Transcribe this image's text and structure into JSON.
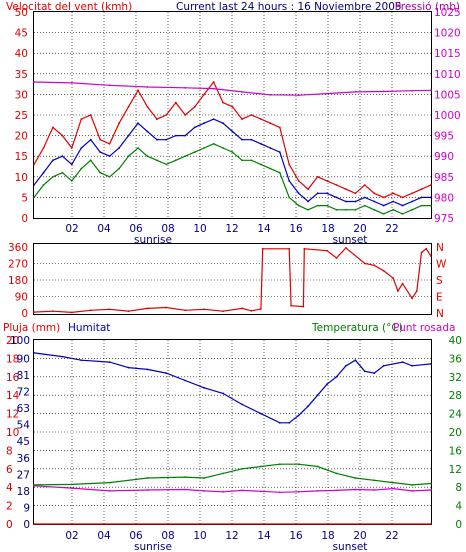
{
  "colors": {
    "red": "#e00000",
    "blue": "#0000c0",
    "green": "#008000",
    "magenta": "#d000d0",
    "purple": "#a000a0",
    "navy": "#000080",
    "black": "#000000"
  },
  "chart_data": [
    {
      "type": "line",
      "title": "Current last 24 hours : 16 Noviembre 2005",
      "left_axis_label": "Velocitat del vent (kmh)",
      "right_axis_label": "Pressió (mb)",
      "left_ticks": [
        "0",
        "5",
        "10",
        "15",
        "20",
        "25",
        "30",
        "35",
        "40",
        "45",
        "50"
      ],
      "right_ticks": [
        "975",
        "980",
        "985",
        "990",
        "995",
        "1000",
        "1005",
        "1010",
        "1015",
        "1020",
        "1025"
      ],
      "x_ticks": [
        "02",
        "04",
        "06",
        "08",
        "10",
        "12",
        "14",
        "16",
        "18",
        "20",
        "22"
      ],
      "x_markers": [
        "sunrise",
        "sunset"
      ],
      "ylim_left": [
        0,
        50
      ],
      "ylim_right": [
        975,
        1025
      ],
      "grid": true,
      "series": [
        {
          "color": "#e00000",
          "kind": "gust",
          "points": [
            [
              0,
              13
            ],
            [
              1,
              17
            ],
            [
              2,
              22
            ],
            [
              3,
              20
            ],
            [
              4,
              17
            ],
            [
              5,
              24
            ],
            [
              6,
              25
            ],
            [
              7,
              19
            ],
            [
              8,
              18
            ],
            [
              9,
              23
            ],
            [
              10,
              27
            ],
            [
              11,
              31
            ],
            [
              12,
              27
            ],
            [
              13,
              24
            ],
            [
              14,
              25
            ],
            [
              15,
              28
            ],
            [
              16,
              25
            ],
            [
              17,
              27
            ],
            [
              18,
              30
            ],
            [
              19,
              33
            ],
            [
              20,
              28
            ],
            [
              21,
              27
            ],
            [
              22,
              24
            ],
            [
              23,
              25
            ],
            [
              24,
              24
            ],
            [
              25,
              23
            ],
            [
              26,
              22
            ],
            [
              27,
              13
            ],
            [
              28,
              9
            ],
            [
              29,
              7
            ],
            [
              30,
              10
            ],
            [
              31,
              9
            ],
            [
              32,
              8
            ],
            [
              33,
              7
            ],
            [
              34,
              6
            ],
            [
              35,
              8
            ],
            [
              36,
              6
            ],
            [
              37,
              5
            ],
            [
              38,
              6
            ],
            [
              39,
              5
            ],
            [
              40,
              6
            ],
            [
              41,
              7
            ],
            [
              42,
              8
            ]
          ]
        },
        {
          "color": "#0000c0",
          "kind": "average",
          "points": [
            [
              0,
              8
            ],
            [
              1,
              11
            ],
            [
              2,
              14
            ],
            [
              3,
              15
            ],
            [
              4,
              13
            ],
            [
              5,
              17
            ],
            [
              6,
              19
            ],
            [
              7,
              16
            ],
            [
              8,
              15
            ],
            [
              9,
              17
            ],
            [
              10,
              20
            ],
            [
              11,
              23
            ],
            [
              12,
              21
            ],
            [
              13,
              19
            ],
            [
              14,
              19
            ],
            [
              15,
              20
            ],
            [
              16,
              20
            ],
            [
              17,
              22
            ],
            [
              18,
              23
            ],
            [
              19,
              24
            ],
            [
              20,
              23
            ],
            [
              21,
              21
            ],
            [
              22,
              19
            ],
            [
              23,
              19
            ],
            [
              24,
              18
            ],
            [
              25,
              17
            ],
            [
              26,
              16
            ],
            [
              27,
              9
            ],
            [
              28,
              6
            ],
            [
              29,
              4
            ],
            [
              30,
              6
            ],
            [
              31,
              6
            ],
            [
              32,
              5
            ],
            [
              33,
              4
            ],
            [
              34,
              4
            ],
            [
              35,
              5
            ],
            [
              36,
              4
            ],
            [
              37,
              3
            ],
            [
              38,
              4
            ],
            [
              39,
              3
            ],
            [
              40,
              4
            ],
            [
              41,
              5
            ],
            [
              42,
              5
            ]
          ]
        },
        {
          "color": "#008000",
          "kind": "min",
          "points": [
            [
              0,
              5
            ],
            [
              1,
              8
            ],
            [
              2,
              10
            ],
            [
              3,
              11
            ],
            [
              4,
              9
            ],
            [
              5,
              12
            ],
            [
              6,
              14
            ],
            [
              7,
              11
            ],
            [
              8,
              10
            ],
            [
              9,
              12
            ],
            [
              10,
              15
            ],
            [
              11,
              17
            ],
            [
              12,
              15
            ],
            [
              13,
              14
            ],
            [
              14,
              13
            ],
            [
              15,
              14
            ],
            [
              16,
              15
            ],
            [
              17,
              16
            ],
            [
              18,
              17
            ],
            [
              19,
              18
            ],
            [
              20,
              17
            ],
            [
              21,
              16
            ],
            [
              22,
              14
            ],
            [
              23,
              14
            ],
            [
              24,
              13
            ],
            [
              25,
              12
            ],
            [
              26,
              11
            ],
            [
              27,
              5
            ],
            [
              28,
              3
            ],
            [
              29,
              2
            ],
            [
              30,
              3
            ],
            [
              31,
              3
            ],
            [
              32,
              2
            ],
            [
              33,
              2
            ],
            [
              34,
              2
            ],
            [
              35,
              3
            ],
            [
              36,
              2
            ],
            [
              37,
              1
            ],
            [
              38,
              2
            ],
            [
              39,
              1
            ],
            [
              40,
              2
            ],
            [
              41,
              3
            ],
            [
              42,
              3
            ]
          ]
        },
        {
          "color": "#d000d0",
          "kind": "pressure",
          "axis": "right",
          "points": [
            [
              0,
              1008
            ],
            [
              4,
              1007.8
            ],
            [
              8,
              1007.2
            ],
            [
              12,
              1006.8
            ],
            [
              16,
              1006.6
            ],
            [
              19,
              1006.4
            ],
            [
              22,
              1005.6
            ],
            [
              25,
              1004.9
            ],
            [
              28,
              1004.8
            ],
            [
              31,
              1005.2
            ],
            [
              34,
              1005.6
            ],
            [
              37,
              1005.7
            ],
            [
              40,
              1005.9
            ],
            [
              42,
              1006.0
            ]
          ]
        }
      ]
    },
    {
      "type": "line",
      "left_ticks": [
        "0",
        "90",
        "180",
        "270",
        "360"
      ],
      "right_ticks": [
        "N",
        "E",
        "S",
        "W",
        "N"
      ],
      "ylim": [
        0,
        360
      ],
      "series": [
        {
          "color": "#e00000",
          "kind": "direction",
          "points": [
            [
              0,
              5
            ],
            [
              2,
              10
            ],
            [
              4,
              3
            ],
            [
              6,
              15
            ],
            [
              8,
              20
            ],
            [
              10,
              10
            ],
            [
              12,
              25
            ],
            [
              14,
              30
            ],
            [
              16,
              15
            ],
            [
              18,
              20
            ],
            [
              20,
              10
            ],
            [
              22,
              25
            ],
            [
              23,
              12
            ],
            [
              24,
              22
            ],
            [
              24.2,
              350
            ],
            [
              27,
              350
            ],
            [
              27.2,
              40
            ],
            [
              28.5,
              35
            ],
            [
              28.6,
              350
            ],
            [
              31,
              340
            ],
            [
              32,
              300
            ],
            [
              33,
              355
            ],
            [
              35,
              270
            ],
            [
              36,
              260
            ],
            [
              37,
              230
            ],
            [
              38,
              190
            ],
            [
              38.5,
              120
            ],
            [
              39,
              160
            ],
            [
              40,
              80
            ],
            [
              40.5,
              120
            ],
            [
              41,
              330
            ],
            [
              41.5,
              350
            ],
            [
              42,
              310
            ]
          ]
        }
      ]
    },
    {
      "type": "line",
      "left_axis_label": "Pluja (mm)",
      "humidity_label": "Humitat",
      "right_axis_label": "Temperatura (°C)",
      "right_axis_label2": "Punt rosada",
      "left_ticks": [
        "0",
        "2",
        "4",
        "6",
        "8",
        "10",
        "12",
        "14",
        "16",
        "18",
        "20"
      ],
      "mid_ticks": [
        "0",
        "9",
        "18",
        "27",
        "36",
        "45",
        "54",
        "63",
        "72",
        "81",
        "90",
        "100"
      ],
      "right_ticks": [
        "0",
        "4",
        "8",
        "12",
        "16",
        "20",
        "24",
        "28",
        "32",
        "36",
        "40"
      ],
      "x_ticks": [
        "02",
        "04",
        "06",
        "08",
        "10",
        "12",
        "14",
        "16",
        "18",
        "20",
        "22"
      ],
      "x_markers": [
        "sunrise",
        "sunset"
      ],
      "grid": true,
      "series": [
        {
          "color": "#e00000",
          "kind": "rain",
          "axis": "left",
          "points": [
            [
              0,
              0
            ],
            [
              42,
              0
            ]
          ]
        },
        {
          "color": "#0000c0",
          "kind": "humidity",
          "axis": "mid",
          "points": [
            [
              0,
              93
            ],
            [
              3,
              91
            ],
            [
              5,
              89
            ],
            [
              8,
              88
            ],
            [
              10,
              85
            ],
            [
              12,
              84
            ],
            [
              14,
              82
            ],
            [
              16,
              78
            ],
            [
              18,
              74
            ],
            [
              20,
              71
            ],
            [
              22,
              65
            ],
            [
              24,
              60
            ],
            [
              26,
              55
            ],
            [
              27,
              55
            ],
            [
              28,
              59
            ],
            [
              29,
              64
            ],
            [
              30,
              70
            ],
            [
              31,
              76
            ],
            [
              32,
              80
            ],
            [
              33,
              86
            ],
            [
              34,
              89
            ],
            [
              35,
              83
            ],
            [
              36,
              82
            ],
            [
              37,
              86
            ],
            [
              39,
              88
            ],
            [
              40,
              86
            ],
            [
              42,
              87
            ]
          ]
        },
        {
          "color": "#008000",
          "kind": "temperature",
          "axis": "right",
          "points": [
            [
              0,
              8.5
            ],
            [
              4,
              8.6
            ],
            [
              8,
              9
            ],
            [
              12,
              10
            ],
            [
              16,
              10.2
            ],
            [
              18,
              10
            ],
            [
              20,
              11
            ],
            [
              22,
              12
            ],
            [
              24,
              12.5
            ],
            [
              26,
              13
            ],
            [
              28,
              13
            ],
            [
              30,
              12.5
            ],
            [
              32,
              11
            ],
            [
              34,
              10
            ],
            [
              36,
              9.5
            ],
            [
              38,
              9
            ],
            [
              40,
              8.5
            ],
            [
              42,
              8.8
            ]
          ]
        },
        {
          "color": "#d000d0",
          "kind": "dew point",
          "axis": "right",
          "points": [
            [
              0,
              8.3
            ],
            [
              4,
              7.8
            ],
            [
              8,
              7.2
            ],
            [
              12,
              7.4
            ],
            [
              16,
              7.5
            ],
            [
              18,
              7.2
            ],
            [
              20,
              7.0
            ],
            [
              22,
              7.3
            ],
            [
              24,
              7.1
            ],
            [
              26,
              6.9
            ],
            [
              28,
              7.0
            ],
            [
              30,
              7.2
            ],
            [
              32,
              7.3
            ],
            [
              34,
              7.5
            ],
            [
              36,
              7.4
            ],
            [
              38,
              7.7
            ],
            [
              40,
              7.2
            ],
            [
              42,
              7.4
            ]
          ]
        }
      ]
    }
  ]
}
